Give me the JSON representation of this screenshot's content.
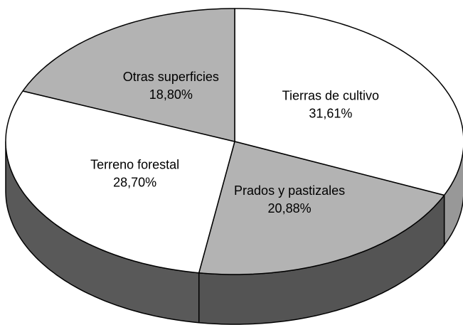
{
  "chart_data": {
    "type": "pie3d",
    "categories": [
      "Tierras de cultivo",
      "Prados y pastizales",
      "Terreno forestal",
      "Otras superficies"
    ],
    "values": [
      31.61,
      20.88,
      28.7,
      18.8
    ],
    "value_labels": [
      "31,61%",
      "20,88%",
      "28,70%",
      "18,80%"
    ],
    "colors": [
      "#ffffff",
      "#b3b3b3",
      "#ffffff",
      "#b3b3b3"
    ]
  }
}
